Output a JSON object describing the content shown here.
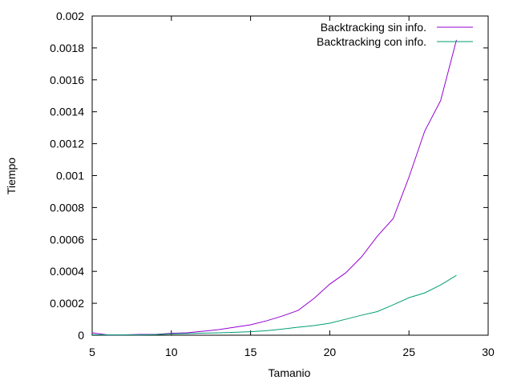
{
  "chart_data": {
    "type": "line",
    "xlabel": "Tamanio",
    "ylabel": "Tiempo",
    "xlim": [
      5,
      30
    ],
    "ylim": [
      0,
      0.002
    ],
    "x_ticks": [
      5,
      10,
      15,
      20,
      25,
      30
    ],
    "x_tick_labels": [
      "5",
      "10",
      "15",
      "20",
      "25",
      "30"
    ],
    "y_ticks": [
      0,
      0.0002,
      0.0004,
      0.0006,
      0.0008,
      0.001,
      0.0012,
      0.0014,
      0.0016,
      0.0018,
      0.002
    ],
    "y_tick_labels": [
      "0",
      "0.0002",
      "0.0004",
      "0.0006",
      "0.0008",
      "0.001",
      "0.0012",
      "0.0014",
      "0.0016",
      "0.0018",
      "0.002"
    ],
    "grid": false,
    "legend_position": "top-right",
    "x": [
      5,
      6,
      7,
      8,
      9,
      10,
      11,
      12,
      13,
      14,
      15,
      16,
      17,
      18,
      19,
      20,
      21,
      22,
      23,
      24,
      25,
      26,
      27,
      28
    ],
    "series": [
      {
        "name": "Backtracking sin info.",
        "color": "#9400d3",
        "values": [
          1.5e-05,
          2e-06,
          2e-06,
          5e-06,
          5e-06,
          1.2e-05,
          1.5e-05,
          2.5e-05,
          3.5e-05,
          5e-05,
          6.5e-05,
          9e-05,
          0.00012,
          0.000155,
          0.00023,
          0.00032,
          0.00039,
          0.00049,
          0.00062,
          0.00073,
          0.00099,
          0.00128,
          0.00147,
          0.00185
        ]
      },
      {
        "name": "Backtracking con info.",
        "color": "#009e73",
        "values": [
          3e-06,
          2e-06,
          2e-06,
          2e-06,
          4e-06,
          8e-06,
          1e-05,
          1.3e-05,
          1.5e-05,
          1.8e-05,
          2.2e-05,
          2.8e-05,
          3.8e-05,
          5e-05,
          6e-05,
          7.5e-05,
          0.0001,
          0.000125,
          0.000148,
          0.00019,
          0.000235,
          0.000265,
          0.000315,
          0.000375
        ]
      }
    ]
  }
}
